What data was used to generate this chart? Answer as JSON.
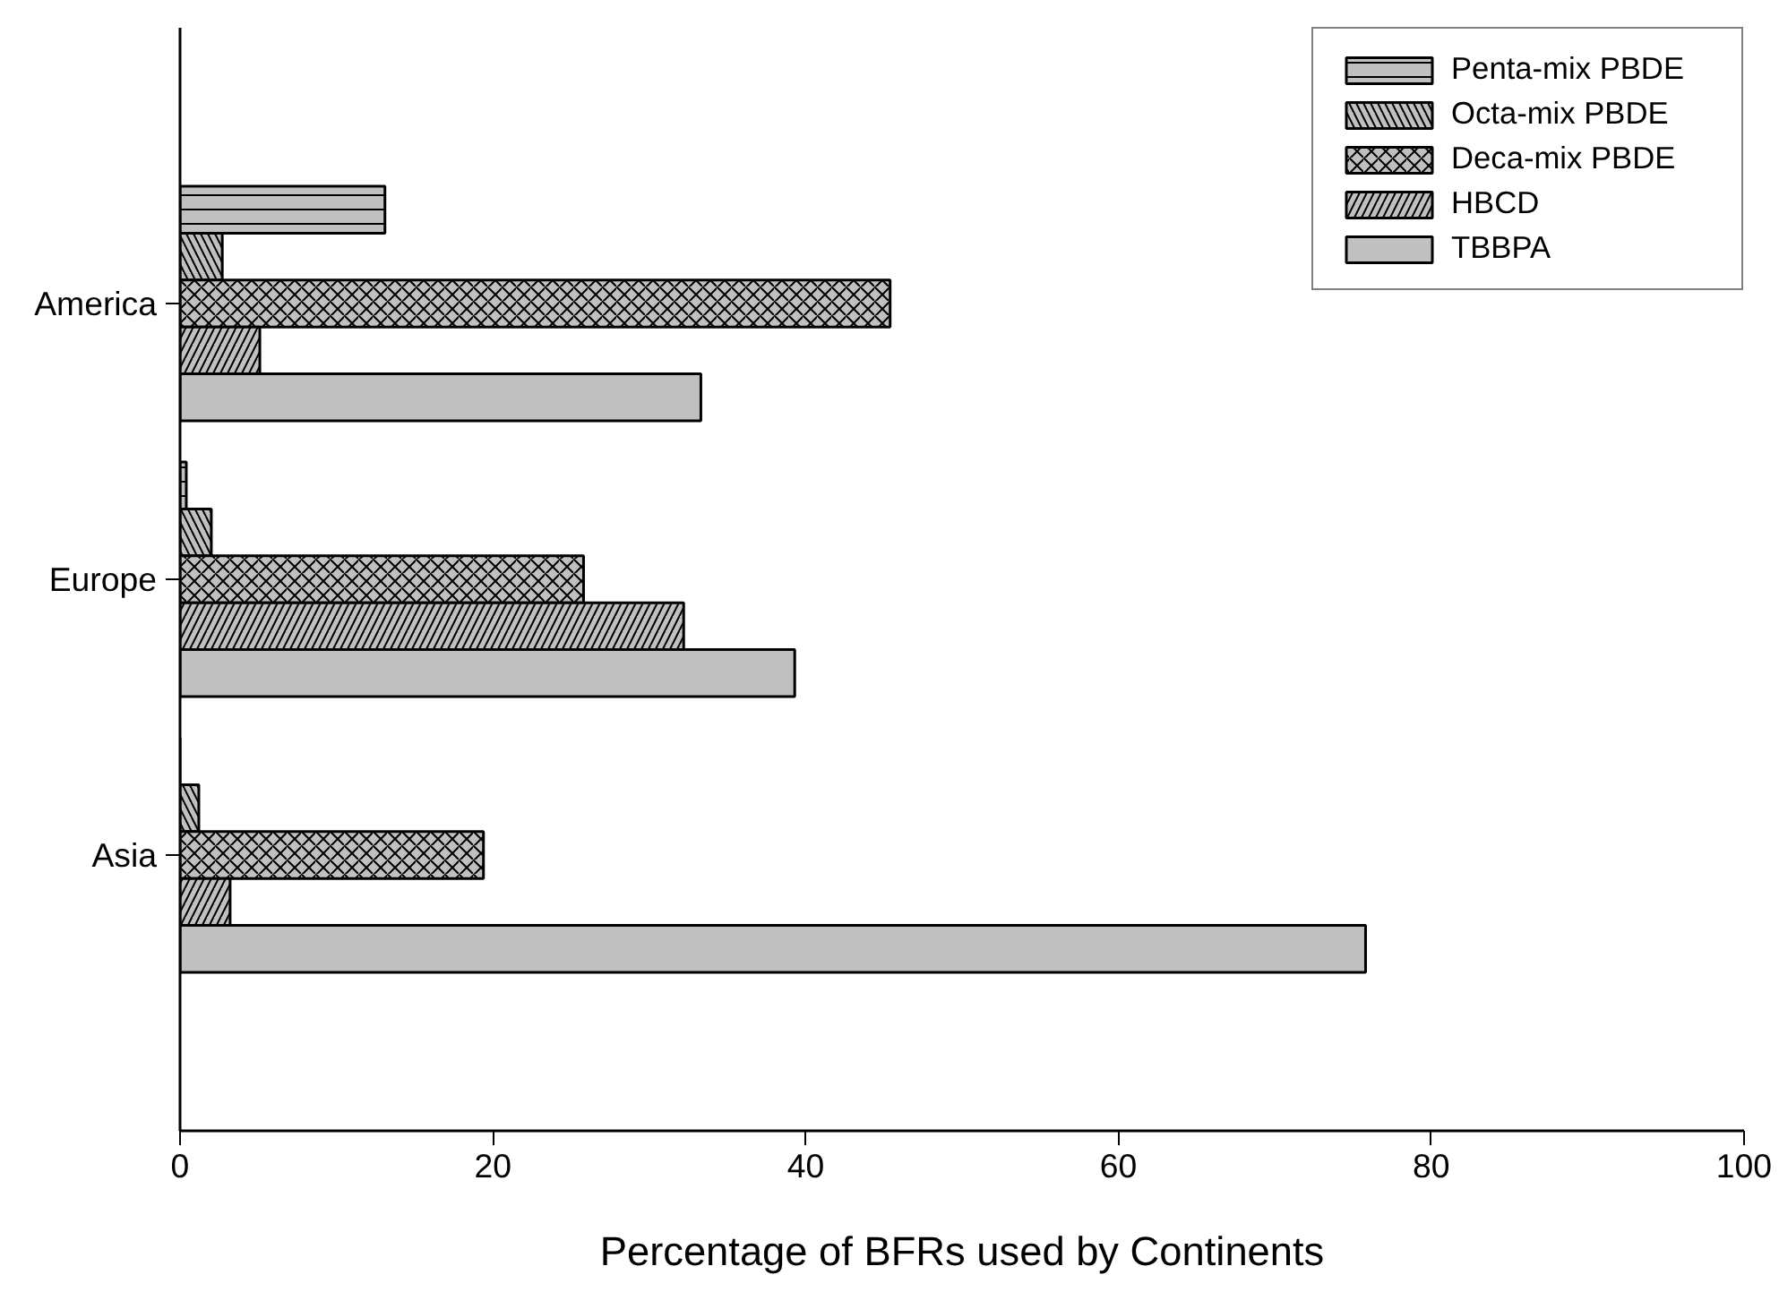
{
  "chart_data": {
    "type": "bar",
    "orientation": "horizontal",
    "xlabel": "Percentage of BFRs used by Continents",
    "categories": [
      "America",
      "Europe",
      "Asia"
    ],
    "series": [
      {
        "name": "Penta-mix PBDE",
        "color": "#c0c0c0",
        "values": [
          13.1,
          0.4,
          0
        ]
      },
      {
        "name": "Octa-mix PBDE",
        "color": "#c0c0c0",
        "values": [
          2.7,
          2.0,
          1.2
        ]
      },
      {
        "name": "Deca-mix PBDE",
        "color": "#c0c0c0",
        "values": [
          45.4,
          25.8,
          19.4
        ]
      },
      {
        "name": "HBCD",
        "color": "#c0c0c0",
        "values": [
          5.1,
          32.2,
          3.2
        ]
      },
      {
        "name": "TBBPA",
        "color": "#c0c0c0",
        "values": [
          33.3,
          39.3,
          75.8
        ]
      }
    ],
    "xlim": [
      0,
      100
    ],
    "xticks": [
      0,
      20,
      40,
      60,
      80,
      100
    ],
    "grid": false,
    "legend": "top right"
  }
}
